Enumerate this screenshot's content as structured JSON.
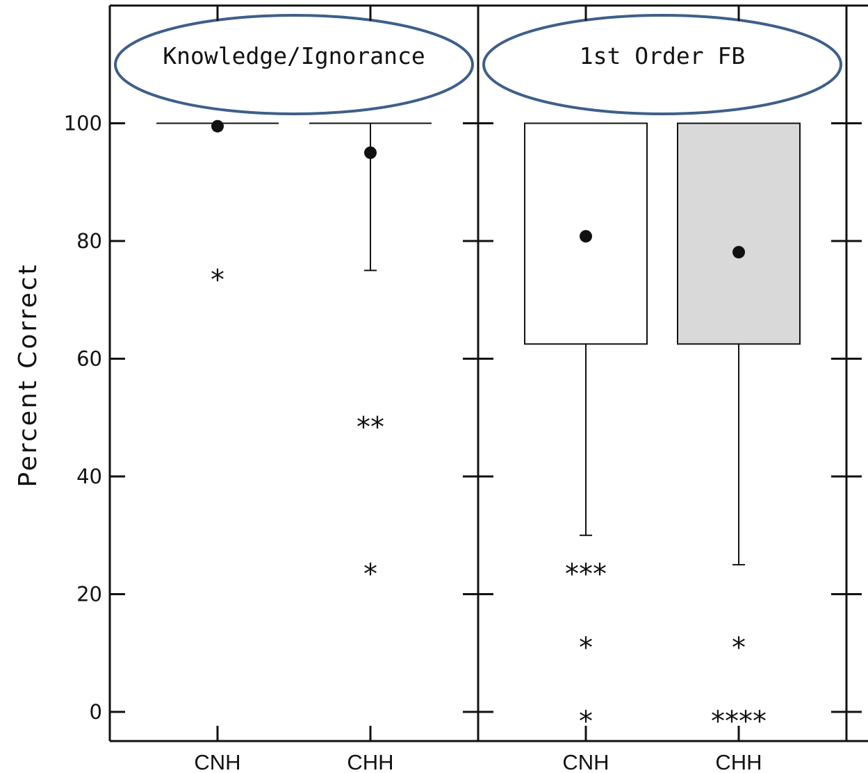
{
  "chart_data": {
    "type": "box",
    "ylabel": "Percent Correct",
    "yticks": [
      0,
      20,
      40,
      60,
      80,
      100
    ],
    "ylim": [
      -5,
      120
    ],
    "grid": false,
    "colors": {
      "box_cnh": "#ffffff",
      "box_chh": "#d9d9d9",
      "ellipse": "#3e5f8a",
      "ink": "#111111"
    },
    "panels": [
      {
        "title": "Knowledge/Ignorance",
        "groups": [
          {
            "category": "CNH",
            "q1": 100,
            "median": 100,
            "q3": 100,
            "whisker_low": 100,
            "whisker_high": 100,
            "mean": 99.5,
            "outliers": [
              {
                "value": 75,
                "marker": "*"
              }
            ]
          },
          {
            "category": "CHH",
            "q1": 100,
            "median": 100,
            "q3": 100,
            "whisker_low": 75,
            "whisker_high": 100,
            "mean": 95,
            "outliers": [
              {
                "value": 50,
                "marker": "**"
              },
              {
                "value": 25,
                "marker": "*"
              }
            ]
          }
        ]
      },
      {
        "title": "1st Order FB",
        "groups": [
          {
            "category": "CNH",
            "q1": 62.5,
            "median": 100,
            "q3": 100,
            "whisker_low": 30,
            "whisker_high": 100,
            "mean": 80.8,
            "outliers": [
              {
                "value": 25,
                "marker": "***"
              },
              {
                "value": 12.5,
                "marker": "*"
              },
              {
                "value": 0,
                "marker": "*"
              }
            ]
          },
          {
            "category": "CHH",
            "q1": 62.5,
            "median": 100,
            "q3": 100,
            "whisker_low": 25,
            "whisker_high": 100,
            "mean": 78.1,
            "outliers": [
              {
                "value": 12.5,
                "marker": "*"
              },
              {
                "value": 0,
                "marker": "****"
              }
            ]
          }
        ]
      }
    ]
  }
}
